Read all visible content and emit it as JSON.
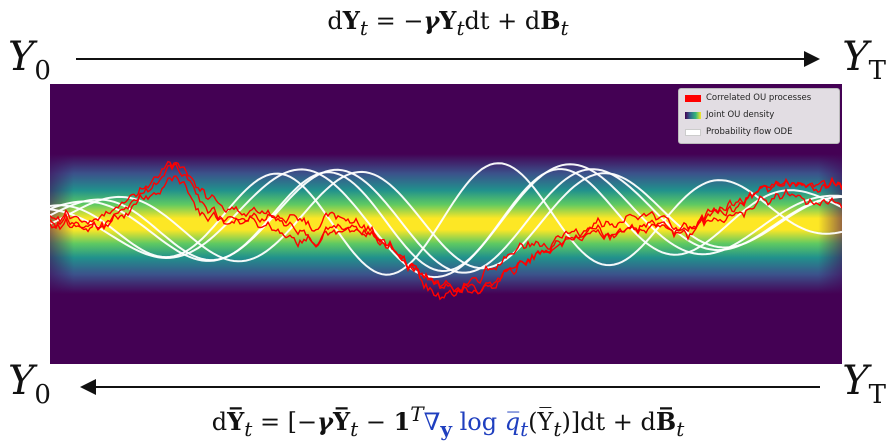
{
  "top_equation": {
    "lhs": "d",
    "lhs_var": "Y",
    "lhs_sub": "t",
    "rhs_a": " = −",
    "gamma": "γ",
    "rhs_var": "Y",
    "rhs_sub": "t",
    "rhs_b": "dt + d",
    "noise": "B",
    "noise_sub": "t"
  },
  "bottom_equation": {
    "lhs": "d",
    "lhs_var": "Y̅",
    "lhs_sub": "t",
    "part_a": " = [−",
    "gamma": "γ",
    "var2": "Y̅",
    "sub2": "t",
    "part_b": " − ",
    "one": "1",
    "sup_T": "T",
    "score_nabla": "∇",
    "score_sub": "y",
    "score_log": " log ",
    "score_q": "q̅",
    "score_q_sub": "t",
    "score_arg": "(Y̅",
    "score_arg_sub": "t",
    "part_c": ")]dt + d",
    "noise": "B̅",
    "noise_sub": "t"
  },
  "endpoints": {
    "top_left": "Y",
    "top_left_sub": "0",
    "top_right": "Y",
    "top_right_sub": "T",
    "bottom_left": "Y",
    "bottom_left_sub": "0",
    "bottom_right": "Y",
    "bottom_right_sub": "T"
  },
  "legend": {
    "items": [
      {
        "label": "Correlated OU processes",
        "color": "#ff0000"
      },
      {
        "label": "Joint OU density",
        "color": "viridis-gradient"
      },
      {
        "label": "Probability flow ODE",
        "color": "#ffffff"
      }
    ]
  },
  "colors": {
    "background": "#440154",
    "ou_paths": "#ff0000",
    "ode_paths": "#ffffff",
    "score_text": "#1f3fbf"
  }
}
